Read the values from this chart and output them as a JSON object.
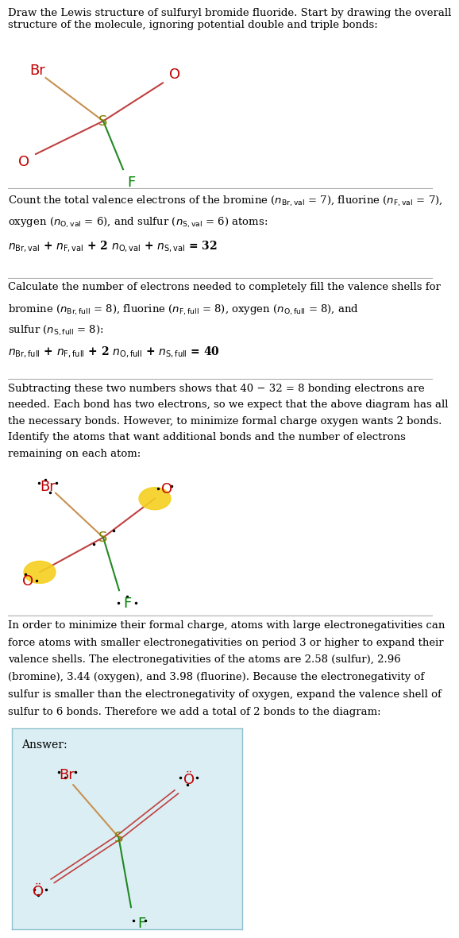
{
  "title_text": "Draw the Lewis structure of sulfuryl bromide fluoride. Start by drawing the overall\nstructure of the molecule, ignoring potential double and triple bonds:",
  "section1_text": "Count the total valence electrons of the bromine (n_{Br,val} = 7), fluorine (n_{F,val} = 7),\noxygen (n_{O,val} = 6), and sulfur (n_{S,val} = 6) atoms:\nn_{Br,val} + n_{F,val} + 2 n_{O,val} + n_{S,val} = 32",
  "section2_text": "Calculate the number of electrons needed to completely fill the valence shells for\nbromine (n_{Br,full} = 8), fluorine (n_{F,full} = 8), oxygen (n_{O,full} = 8), and\nsulfur (n_{S,full} = 8):\nn_{Br,full} + n_{F,full} + 2 n_{O,full} + n_{S,full} = 40",
  "section3_text": "Subtracting these two numbers shows that 40 − 32 = 8 bonding electrons are\nneeded. Each bond has two electrons, so we expect that the above diagram has all\nthe necessary bonds. However, to minimize formal charge oxygen wants 2 bonds.\nIdentify the atoms that want additional bonds and the number of electrons\nremaining on each atom:",
  "section4_text": "In order to minimize their formal charge, atoms with large electronegativities can\nforce atoms with smaller electronegativities on period 3 or higher to expand their\nvalence shells. The electronegativities of the atoms are 2.58 (sulfur), 2.96\n(bromine), 3.44 (oxygen), and 3.98 (fluorine). Because the electronegativity of\nsulfur is smaller than the electronegativity of oxygen, expand the valence shell of\nsulfur to 6 bonds. Therefore we add a total of 2 bonds to the diagram:",
  "answer_label": "Answer:",
  "bg_color": "#ffffff",
  "answer_box_color": "#daeef3",
  "text_color": "#000000",
  "S_color": "#808000",
  "Br_color": "#c00000",
  "O_color": "#c00000",
  "F_color": "#008000",
  "bond_S_Br_color": "#c08040",
  "bond_S_O_color": "#c04040",
  "bond_S_F_color": "#808000",
  "separator_color": "#aaaaaa"
}
